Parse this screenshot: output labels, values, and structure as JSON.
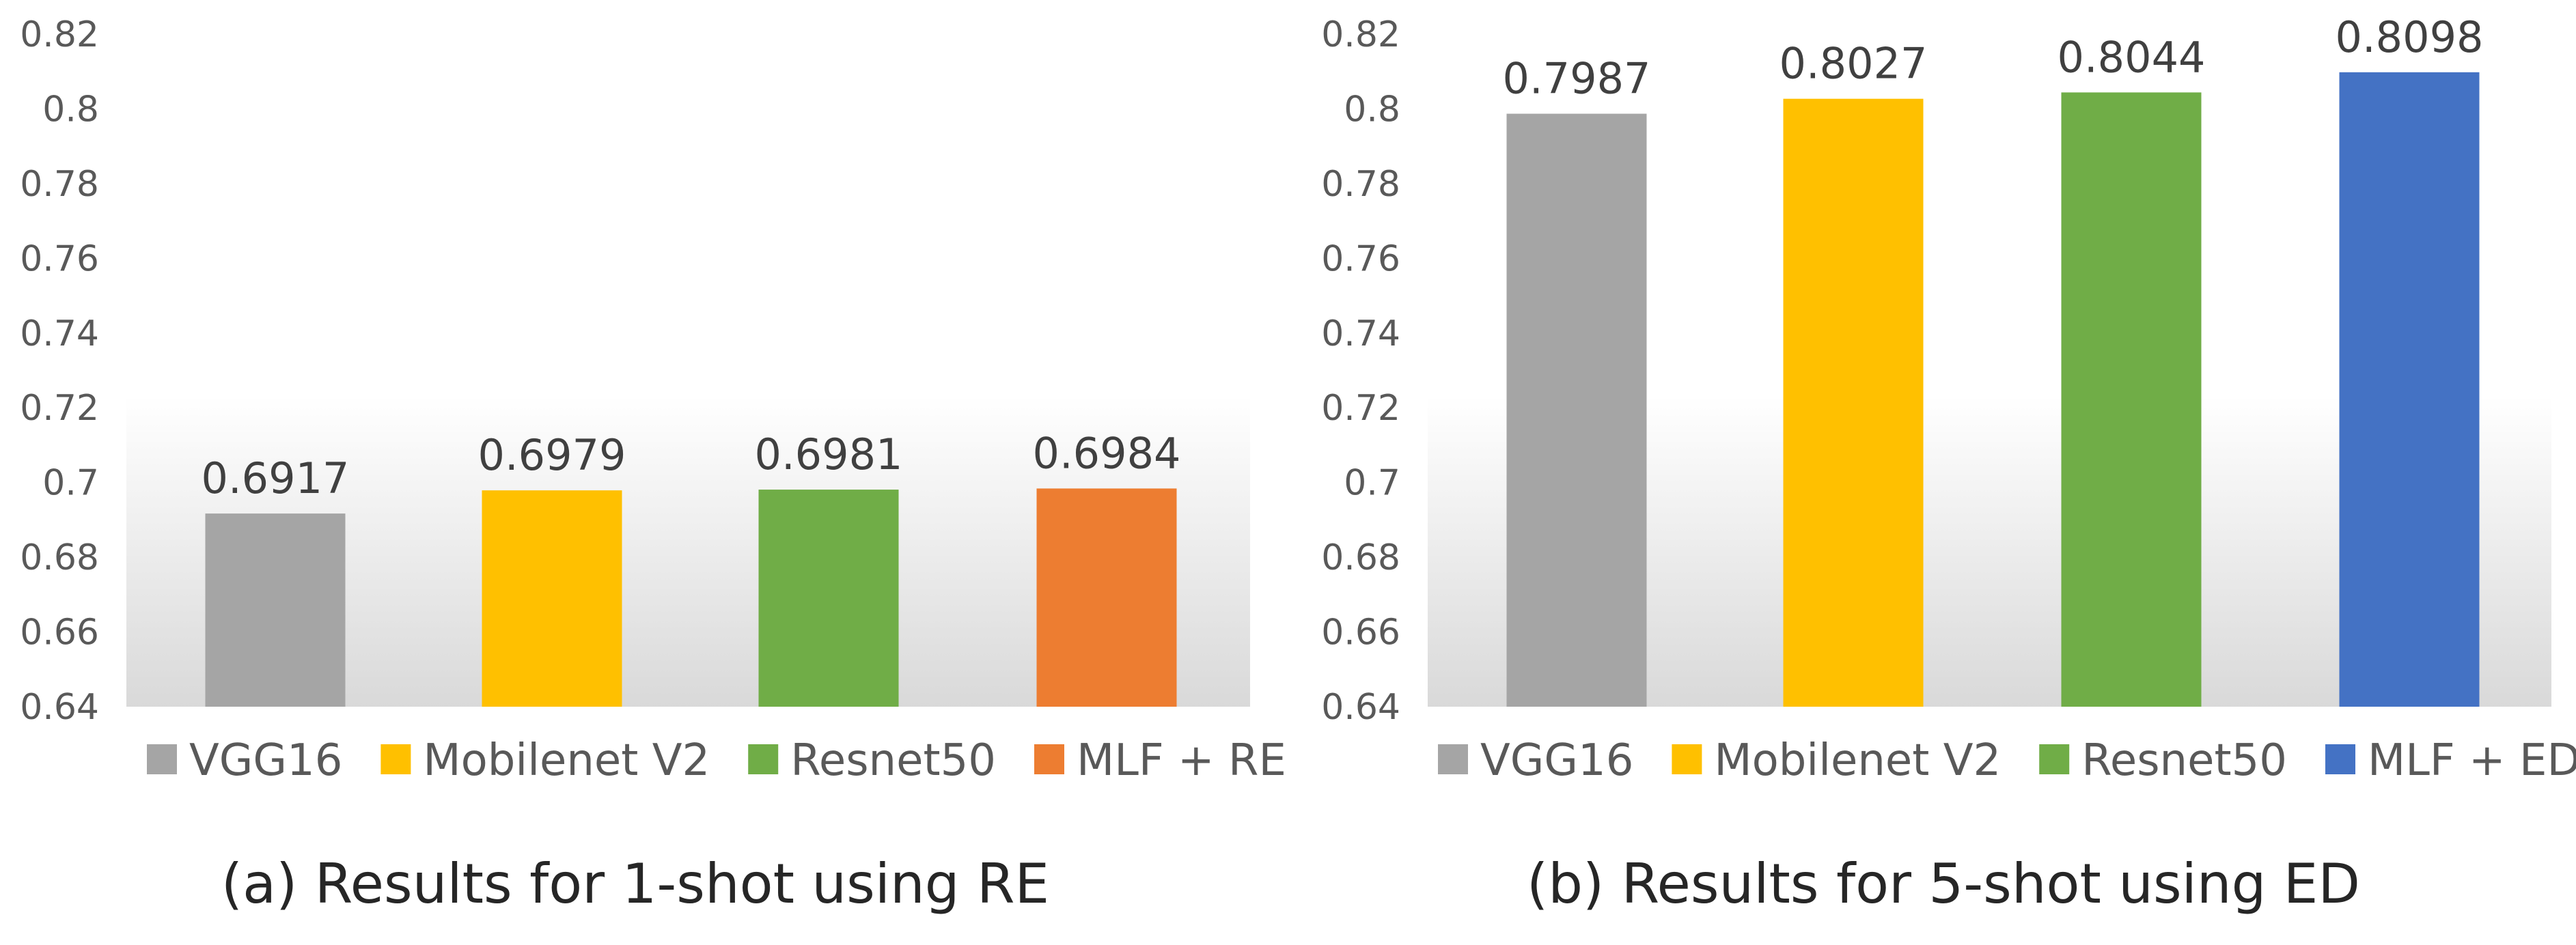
{
  "figure": {
    "panels": [
      {
        "caption": "(a) Results for 1-shot using RE",
        "ytick_labels": [
          "0.64",
          "0.66",
          "0.68",
          "0.7",
          "0.72",
          "0.74",
          "0.76",
          "0.78",
          "0.8",
          "0.82"
        ],
        "value_labels": [
          "0.6917",
          "0.6979",
          "0.6981",
          "0.6984"
        ],
        "legend": [
          "VGG16",
          "Mobilenet V2",
          "Resnet50",
          "MLF + RE"
        ],
        "colors": [
          "#a5a5a5",
          "#ffc000",
          "#70ad47",
          "#ed7d31"
        ]
      },
      {
        "caption": "(b) Results for 5-shot using ED",
        "ytick_labels": [
          "0.64",
          "0.66",
          "0.68",
          "0.7",
          "0.72",
          "0.74",
          "0.76",
          "0.78",
          "0.8",
          "0.82"
        ],
        "value_labels": [
          "0.7987",
          "0.8027",
          "0.8044",
          "0.8098"
        ],
        "legend": [
          "VGG16",
          "Mobilenet V2",
          "Resnet50",
          "MLF + ED"
        ],
        "colors": [
          "#a5a5a5",
          "#ffc000",
          "#70ad47",
          "#4472c4"
        ]
      }
    ]
  },
  "chart_data": [
    {
      "type": "bar",
      "title": "(a) Results for 1-shot using RE",
      "categories": [
        "VGG16",
        "Mobilenet V2",
        "Resnet50",
        "MLF + RE"
      ],
      "values": [
        0.6917,
        0.6979,
        0.6981,
        0.6984
      ],
      "ylim": [
        0.64,
        0.82
      ],
      "ytick_step": 0.02,
      "xlabel": "",
      "ylabel": "",
      "grid": false,
      "legend_position": "bottom"
    },
    {
      "type": "bar",
      "title": "(b) Results for 5-shot using ED",
      "categories": [
        "VGG16",
        "Mobilenet V2",
        "Resnet50",
        "MLF + ED"
      ],
      "values": [
        0.7987,
        0.8027,
        0.8044,
        0.8098
      ],
      "ylim": [
        0.64,
        0.82
      ],
      "ytick_step": 0.02,
      "xlabel": "",
      "ylabel": "",
      "grid": false,
      "legend_position": "bottom"
    }
  ]
}
